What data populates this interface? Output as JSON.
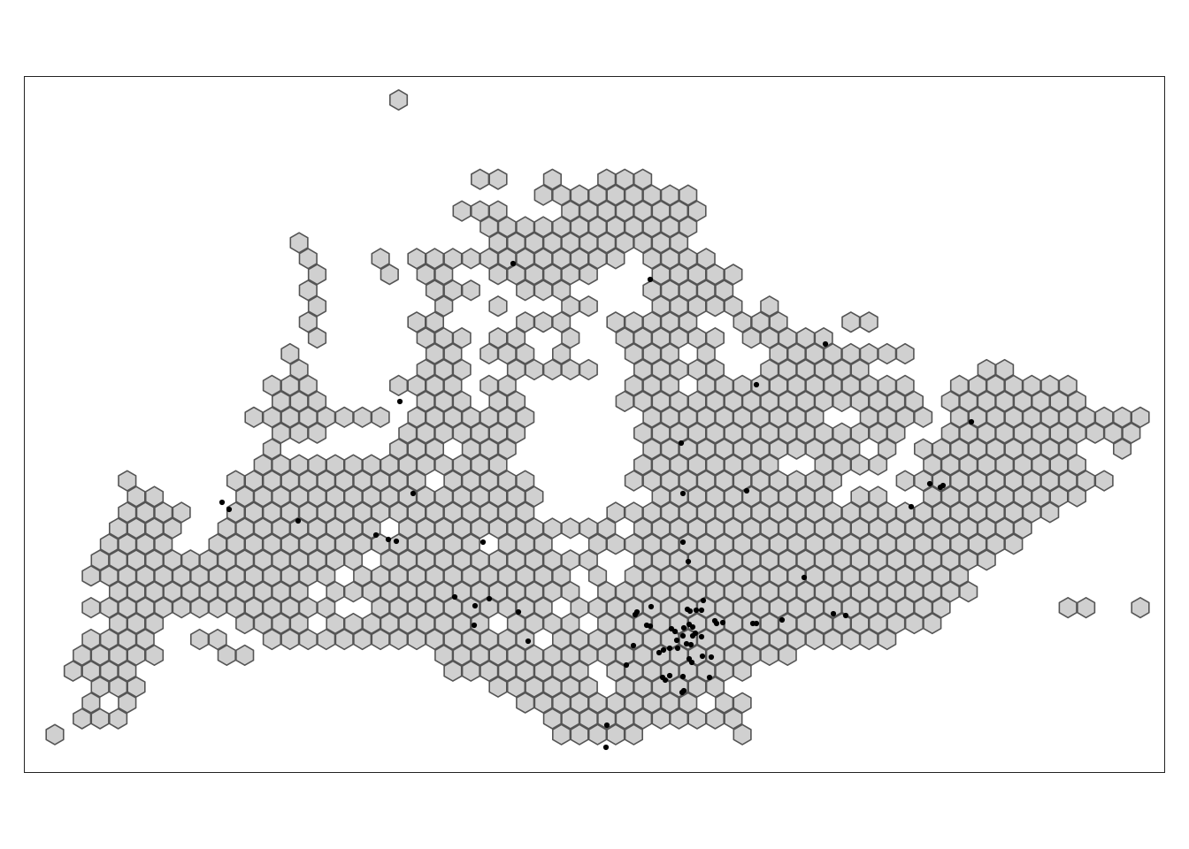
{
  "map": {
    "hex_fill": "#d0d0d0",
    "hex_stroke": "#555555",
    "frame_stroke": "#222222",
    "point_color": "#000000"
  },
  "hexes": [
    [
      1,
      1,
      0
    ],
    [
      5,
      6,
      0
    ],
    [
      5,
      7,
      0
    ],
    [
      4,
      10,
      0
    ],
    [
      4,
      11,
      0
    ],
    [
      4,
      12,
      0
    ],
    [
      5,
      9,
      0
    ],
    [
      5,
      10,
      0
    ],
    [
      5,
      11,
      0
    ],
    [
      5,
      12,
      0
    ],
    [
      5,
      13,
      0
    ],
    [
      5,
      14,
      0
    ],
    [
      6,
      8,
      0
    ],
    [
      6,
      9,
      0
    ],
    [
      6,
      10,
      0
    ],
    [
      6,
      11,
      0
    ],
    [
      6,
      12,
      0
    ],
    [
      6,
      13,
      0
    ],
    [
      6,
      14,
      0
    ],
    [
      7,
      5,
      0
    ],
    [
      7,
      6,
      0
    ],
    [
      7,
      7,
      0
    ],
    [
      7,
      8,
      0
    ],
    [
      7,
      9,
      0
    ],
    [
      7,
      10,
      0
    ],
    [
      7,
      11,
      0
    ],
    [
      7,
      12,
      0
    ],
    [
      7,
      13,
      0
    ],
    [
      7,
      14,
      0
    ],
    [
      8,
      5,
      0
    ],
    [
      8,
      6,
      0
    ],
    [
      8,
      7,
      0
    ],
    [
      8,
      8,
      0
    ],
    [
      8,
      9,
      0
    ],
    [
      8,
      10,
      0
    ],
    [
      8,
      11,
      0
    ],
    [
      8,
      12,
      0
    ],
    [
      8,
      13,
      0
    ],
    [
      8,
      14,
      0
    ],
    [
      9,
      0,
      1
    ],
    [
      9,
      1,
      1
    ],
    [
      9,
      2,
      1
    ],
    [
      9,
      3,
      1
    ],
    [
      9,
      4,
      1
    ],
    [
      9,
      5,
      1
    ],
    [
      9,
      6,
      1
    ],
    [
      9,
      7,
      1
    ],
    [
      9,
      8,
      1
    ],
    [
      9,
      9,
      1
    ],
    [
      9,
      10,
      1
    ],
    [
      9,
      11,
      1
    ],
    [
      9,
      12,
      1
    ],
    [
      9,
      13,
      1
    ],
    [
      9,
      14,
      1
    ],
    [
      9,
      15,
      1
    ],
    [
      9,
      16,
      1
    ],
    [
      9,
      17,
      1
    ],
    [
      9,
      18,
      1
    ],
    [
      9,
      19,
      1
    ],
    [
      9,
      20,
      1
    ],
    [
      9,
      21,
      1
    ],
    [
      9,
      22,
      1
    ],
    [
      9,
      23,
      1
    ],
    [
      9,
      24,
      1
    ],
    [
      9,
      25,
      1
    ],
    [
      9,
      26,
      1
    ],
    [
      9,
      27,
      1
    ],
    [
      9,
      28,
      1
    ],
    [
      9,
      29,
      1
    ],
    [
      9,
      30,
      1
    ],
    [
      9,
      31,
      1
    ],
    [
      9,
      32,
      1
    ],
    [
      9,
      33,
      1
    ],
    [
      9,
      34,
      1
    ],
    [
      9,
      35,
      1
    ],
    [
      9,
      36,
      1
    ],
    [
      9,
      37,
      1
    ],
    [
      9,
      38,
      1
    ],
    [
      9,
      39,
      1
    ],
    [
      9,
      40,
      1
    ],
    [
      9,
      41,
      1
    ],
    [
      9,
      42,
      1
    ],
    [
      9,
      43,
      1
    ],
    [
      9,
      44,
      1
    ],
    [
      9,
      45,
      1
    ],
    [
      9,
      46,
      1
    ],
    [
      9,
      47,
      1
    ],
    [
      9,
      48,
      1
    ],
    [
      9,
      49,
      1
    ],
    [
      9,
      50,
      1
    ],
    [
      9,
      51,
      1
    ],
    [
      9,
      52,
      1
    ],
    [
      9,
      53,
      1
    ],
    [
      9,
      54,
      1
    ],
    [
      9,
      55,
      1
    ],
    [
      9,
      56,
      1
    ],
    [
      9,
      57,
      1
    ],
    [
      9,
      58,
      1
    ],
    [
      9,
      59,
      1
    ]
  ],
  "hex_cells": [],
  "points": []
}
